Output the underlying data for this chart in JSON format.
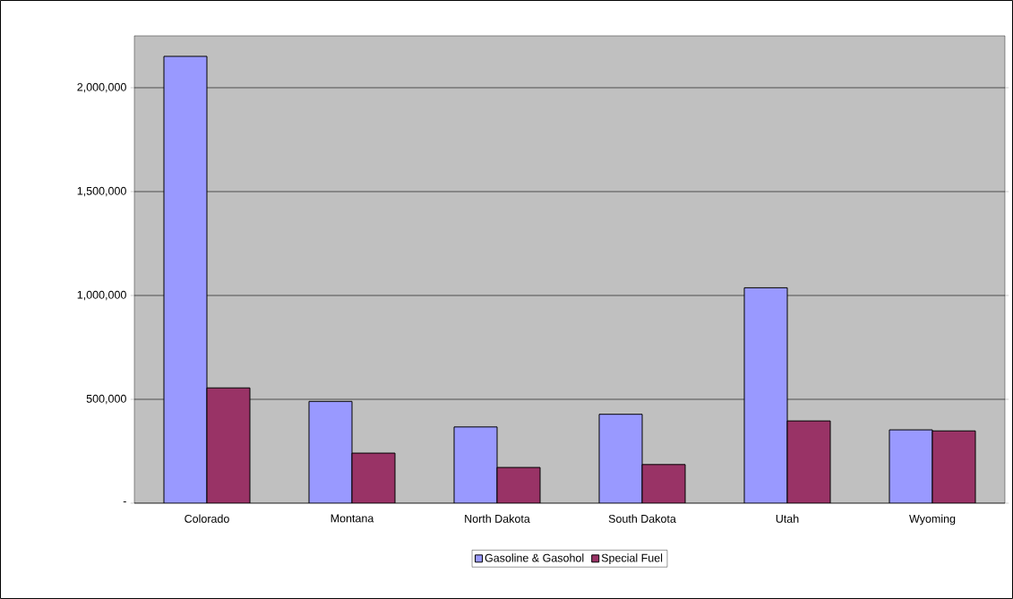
{
  "chart_data": {
    "type": "bar",
    "categories": [
      "Colorado",
      "Montana",
      "North Dakota",
      "South Dakota",
      "Utah",
      "Wyoming"
    ],
    "series": [
      {
        "name": "Gasoline & Gasohol",
        "color": "#9999ff",
        "values": [
          2151000,
          490000,
          367000,
          428000,
          1037000,
          353000
        ]
      },
      {
        "name": "Special Fuel",
        "color": "#993366",
        "values": [
          555000,
          241000,
          172000,
          186000,
          396000,
          348000
        ]
      }
    ],
    "ylim": [
      0,
      2250000
    ],
    "yticks": [
      {
        "value": 0,
        "label": "-"
      },
      {
        "value": 500000,
        "label": "500,000"
      },
      {
        "value": 1000000,
        "label": "1,000,000"
      },
      {
        "value": 1500000,
        "label": "1,500,000"
      },
      {
        "value": 2000000,
        "label": "2,000,000"
      }
    ],
    "grid": "y",
    "legend": "bottom"
  }
}
